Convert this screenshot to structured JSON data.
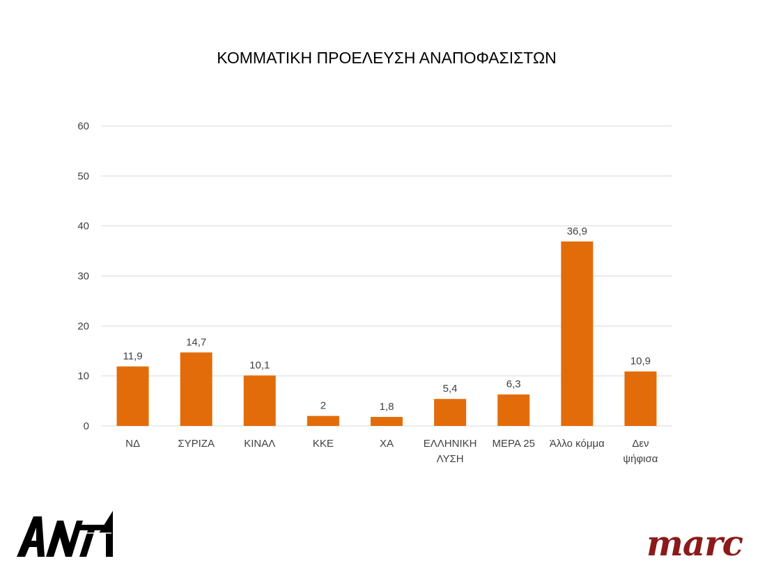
{
  "chart_data": {
    "type": "bar",
    "title": "ΚΟΜΜΑΤΙΚΗ ΠΡΟΕΛΕΥΣΗ ΑΝΑΠΟΦΑΣΙΣΤΩΝ",
    "categories": [
      [
        "ΝΔ"
      ],
      [
        "ΣΥΡΙΖΑ"
      ],
      [
        "ΚΙΝΑΛ"
      ],
      [
        "ΚΚΕ"
      ],
      [
        "ΧΑ"
      ],
      [
        "ΕΛΛΗΝΙΚΗ",
        "ΛΥΣΗ"
      ],
      [
        "ΜΕΡΑ 25"
      ],
      [
        "Άλλο κόμμα"
      ],
      [
        "Δεν",
        "ψήφισα"
      ]
    ],
    "values": [
      11.9,
      14.7,
      10.1,
      2,
      1.8,
      5.4,
      6.3,
      36.9,
      10.9
    ],
    "value_labels": [
      "11,9",
      "14,7",
      "10,1",
      "2",
      "1,8",
      "5,4",
      "6,3",
      "36,9",
      "10,9"
    ],
    "ylim": [
      0,
      60
    ],
    "yticks": [
      0,
      10,
      20,
      30,
      40,
      50,
      60
    ],
    "xlabel": "",
    "ylabel": "",
    "grid": true,
    "legend": "none",
    "bar_color": "#E36C0A",
    "grid_color": "#D9D9D9",
    "label_color": "#404040"
  },
  "logos": {
    "left": {
      "name": "ANT1",
      "text": "ANT1",
      "color": "#000000"
    },
    "right": {
      "name": "marc",
      "text": "marc",
      "color": "#8B1A1A"
    }
  }
}
